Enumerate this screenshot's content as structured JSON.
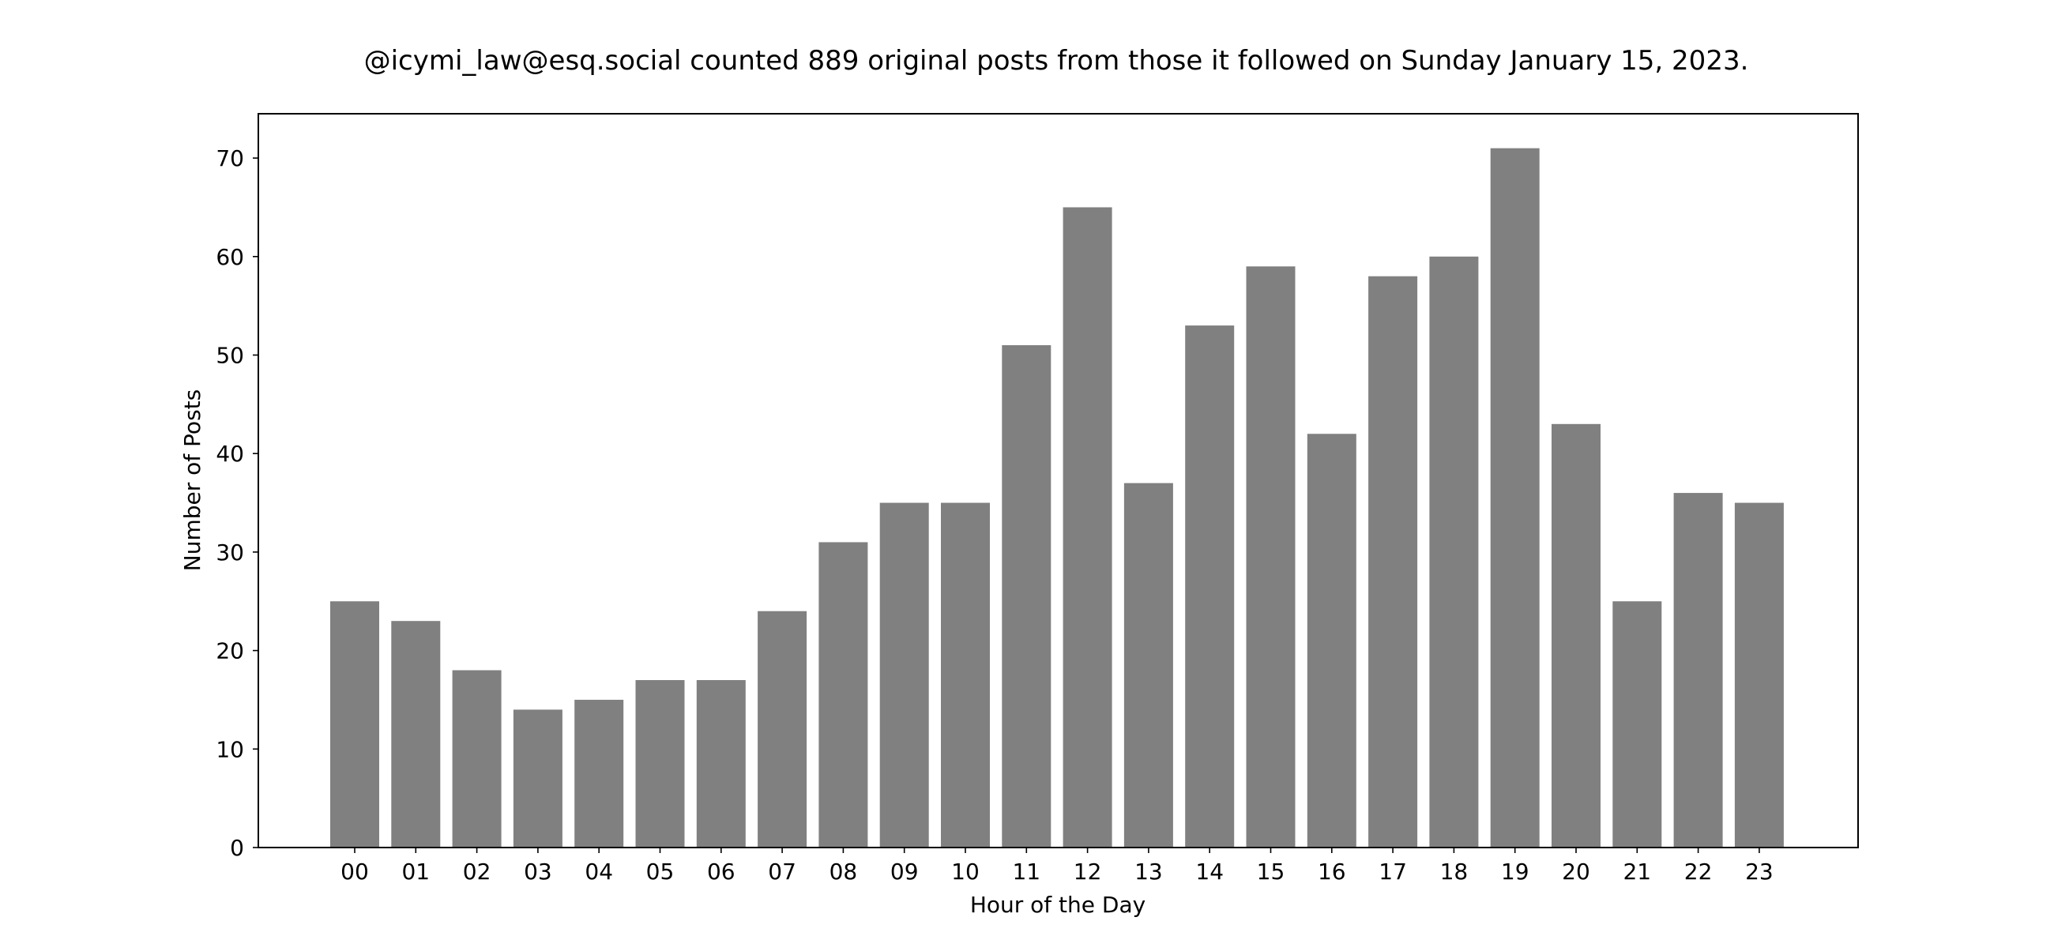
{
  "chart_data": {
    "type": "bar",
    "title": "@icymi_law@esq.social counted 889 original posts from those it followed on Sunday January 15, 2023.",
    "xlabel": "Hour of the Day",
    "ylabel": "Number of Posts",
    "categories": [
      "00",
      "01",
      "02",
      "03",
      "04",
      "05",
      "06",
      "07",
      "08",
      "09",
      "10",
      "11",
      "12",
      "13",
      "14",
      "15",
      "16",
      "17",
      "18",
      "19",
      "20",
      "21",
      "22",
      "23"
    ],
    "values": [
      25,
      23,
      18,
      14,
      15,
      17,
      17,
      24,
      31,
      35,
      35,
      51,
      65,
      37,
      53,
      59,
      42,
      58,
      60,
      71,
      43,
      25,
      36,
      35
    ],
    "ylim": [
      0,
      74.5
    ],
    "yticks": [
      0,
      10,
      20,
      30,
      40,
      50,
      60,
      70
    ],
    "grid": false,
    "bar_color": "#808080"
  }
}
